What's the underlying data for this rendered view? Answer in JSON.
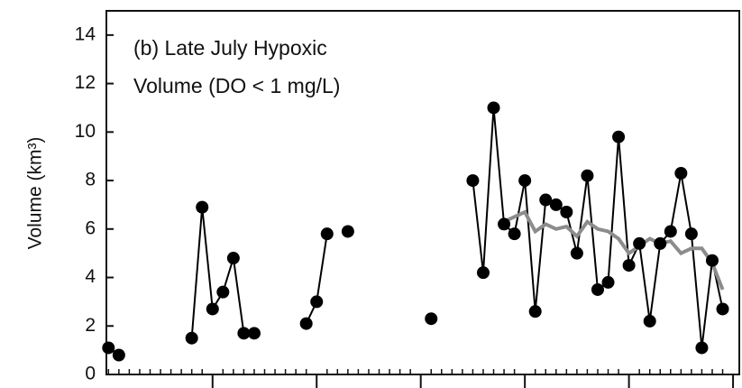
{
  "chart_data": {
    "type": "line",
    "ylabel": "Volume (km³)",
    "annotations": [
      "(b) Late July Hypoxic",
      "Volume (DO < 1 mg/L)"
    ],
    "ylim": [
      0,
      15
    ],
    "yticks": [
      0,
      2,
      4,
      6,
      8,
      10,
      12,
      14
    ],
    "xlim": [
      -0.2,
      60.6
    ],
    "grid": false,
    "series": [
      {
        "color": "#000000",
        "markers": true,
        "x": [
          0,
          1,
          2,
          8,
          9,
          10,
          11,
          12,
          13,
          14,
          15,
          19,
          20,
          21,
          22,
          23,
          24,
          31,
          32,
          35,
          36,
          37,
          38,
          39,
          40,
          41,
          42,
          43,
          44,
          45,
          46,
          47,
          48,
          49,
          50,
          51,
          52,
          53,
          54,
          55,
          56,
          57,
          58,
          59
        ],
        "values": [
          1.1,
          0.8,
          null,
          1.5,
          6.9,
          2.7,
          3.4,
          4.8,
          1.7,
          1.7,
          null,
          2.1,
          3.0,
          5.8,
          null,
          5.9,
          null,
          2.3,
          null,
          8.0,
          4.2,
          11.0,
          6.2,
          5.8,
          8.0,
          2.6,
          7.2,
          7.0,
          6.7,
          5.0,
          8.2,
          3.5,
          3.8,
          9.8,
          4.5,
          5.4,
          2.2,
          5.4,
          5.9,
          8.3,
          5.8,
          1.1,
          4.7,
          2.7
        ]
      },
      {
        "color": "#8c8c8c",
        "markers": false,
        "x": [
          38,
          39,
          40,
          41,
          42,
          43,
          44,
          45,
          46,
          47,
          48,
          49,
          50,
          51,
          52,
          53,
          54,
          55,
          56,
          57,
          58,
          59
        ],
        "values": [
          6.3,
          6.5,
          6.7,
          5.9,
          6.2,
          6.0,
          6.1,
          5.7,
          6.3,
          6.0,
          5.9,
          5.6,
          5.0,
          5.3,
          5.6,
          5.4,
          5.5,
          5.0,
          5.2,
          5.2,
          4.6,
          3.5
        ]
      }
    ]
  }
}
